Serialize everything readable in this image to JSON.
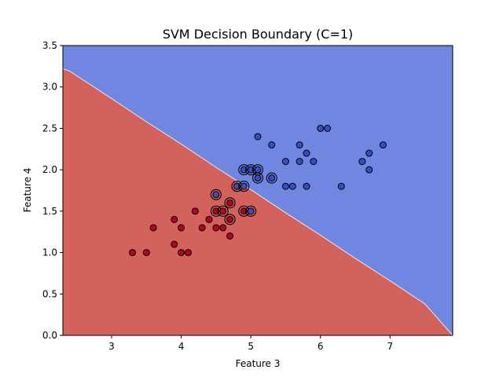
{
  "chart_data": {
    "type": "scatter",
    "title": "SVM Decision Boundary (C=1)",
    "xlabel": "Feature 3",
    "ylabel": "Feature 4",
    "xlim": [
      2.3,
      7.9
    ],
    "ylim": [
      0.0,
      3.5
    ],
    "xticks": [
      3,
      4,
      5,
      6,
      7
    ],
    "yticks": [
      0.0,
      0.5,
      1.0,
      1.5,
      2.0,
      2.5,
      3.0,
      3.5
    ],
    "grid": false,
    "colors": {
      "region_red": "#d4625c",
      "region_blue": "#6f87e0",
      "point_red": "#b40426",
      "point_blue": "#3b4cc0",
      "edge": "#000000",
      "boundary": "#e8e8e8"
    },
    "decision_boundary": [
      [
        2.3,
        3.22
      ],
      [
        2.4,
        3.19
      ],
      [
        3.0,
        2.86
      ],
      [
        3.5,
        2.58
      ],
      [
        4.0,
        2.31
      ],
      [
        4.5,
        2.03
      ],
      [
        5.0,
        1.76
      ],
      [
        5.5,
        1.48
      ],
      [
        6.0,
        1.21
      ],
      [
        6.5,
        0.93
      ],
      [
        7.0,
        0.66
      ],
      [
        7.5,
        0.38
      ],
      [
        7.9,
        0.0
      ]
    ],
    "series": [
      {
        "class": 0,
        "x": [
          3.3,
          3.5,
          3.6,
          3.9,
          3.9,
          4.0,
          4.0,
          4.1,
          4.2,
          4.3,
          4.4,
          4.5,
          4.6,
          4.7,
          4.8
        ],
        "y": [
          1.0,
          1.0,
          1.3,
          1.1,
          1.4,
          1.0,
          1.3,
          1.0,
          1.5,
          1.3,
          1.4,
          1.3,
          1.3,
          1.2,
          1.8
        ]
      },
      {
        "class": 1,
        "x": [
          5.1,
          5.3,
          5.5,
          5.5,
          5.6,
          5.7,
          5.7,
          5.8,
          5.8,
          5.9,
          6.0,
          6.1,
          6.3,
          6.6,
          6.7,
          6.7,
          6.9
        ],
        "y": [
          2.4,
          2.3,
          2.1,
          1.8,
          1.8,
          2.3,
          2.1,
          2.2,
          1.8,
          2.1,
          2.5,
          2.5,
          1.8,
          2.1,
          2.2,
          2.0,
          2.3
        ]
      }
    ],
    "support_vectors": [
      {
        "x": 4.5,
        "y": 1.7,
        "class": 1
      },
      {
        "x": 4.5,
        "y": 1.5,
        "class": 0
      },
      {
        "x": 4.6,
        "y": 1.5,
        "class": 0
      },
      {
        "x": 4.7,
        "y": 1.6,
        "class": 0
      },
      {
        "x": 4.7,
        "y": 1.4,
        "class": 0
      },
      {
        "x": 4.8,
        "y": 1.8,
        "class": 1
      },
      {
        "x": 4.9,
        "y": 1.8,
        "class": 1
      },
      {
        "x": 4.9,
        "y": 2.0,
        "class": 1
      },
      {
        "x": 4.9,
        "y": 1.5,
        "class": 0
      },
      {
        "x": 5.0,
        "y": 2.0,
        "class": 1
      },
      {
        "x": 5.0,
        "y": 1.5,
        "class": 1
      },
      {
        "x": 5.1,
        "y": 2.0,
        "class": 1
      },
      {
        "x": 5.1,
        "y": 1.9,
        "class": 1
      },
      {
        "x": 5.3,
        "y": 1.9,
        "class": 1
      }
    ]
  }
}
